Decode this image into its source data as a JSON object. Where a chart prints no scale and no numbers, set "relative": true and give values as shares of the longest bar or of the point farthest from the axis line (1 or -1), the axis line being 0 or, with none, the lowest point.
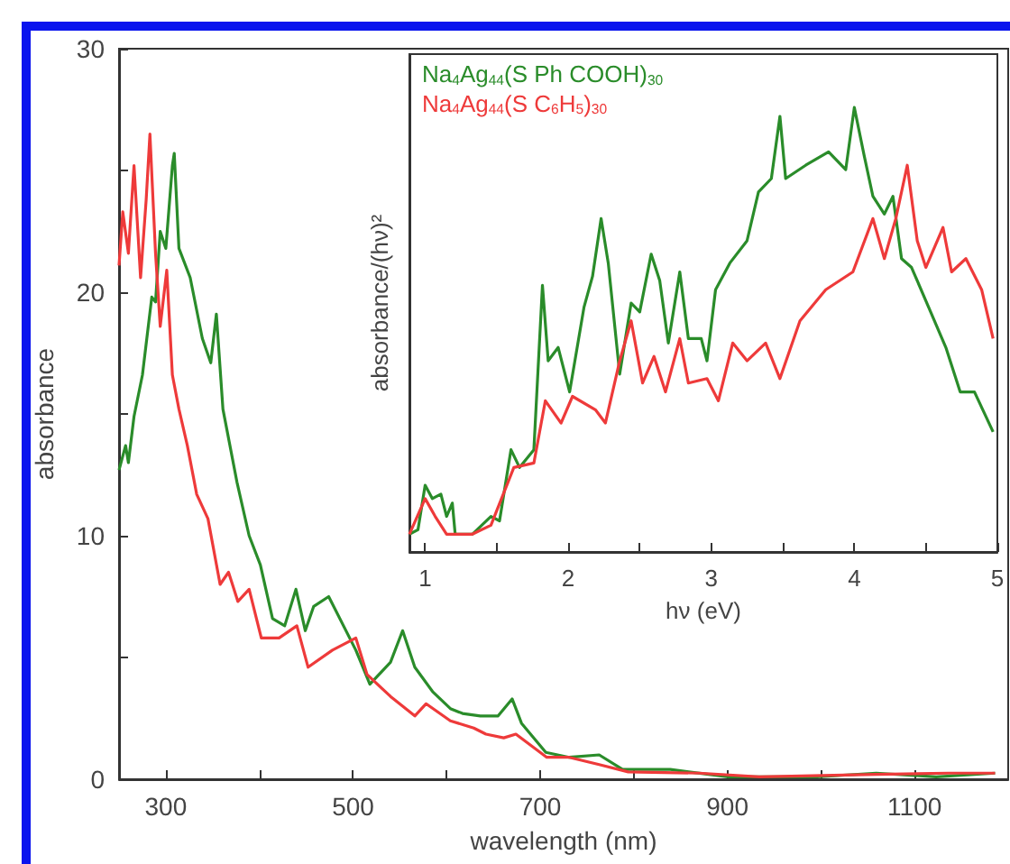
{
  "chart_data": [
    {
      "type": "line",
      "xlabel": "wavelength (nm)",
      "ylabel": "absorbance",
      "xlim": [
        250,
        1200
      ],
      "ylim": [
        0,
        30
      ],
      "xticks": [
        300,
        {
          "value": 400,
          "label": null
        },
        500,
        {
          "value": 600,
          "label": null
        },
        700,
        {
          "value": 800,
          "label": null
        },
        900,
        {
          "value": 1000,
          "label": null
        },
        1100
      ],
      "yticks": [
        0,
        {
          "value": 5,
          "label": null
        },
        10,
        {
          "value": 15,
          "label": null
        },
        20,
        {
          "value": 25,
          "label": null
        },
        30
      ],
      "series": [
        {
          "color": "#2a8c2a",
          "x": [
            250,
            257,
            260,
            266,
            275,
            285,
            289,
            294,
            300,
            307,
            309,
            314,
            326,
            339,
            348,
            354,
            361,
            376,
            389,
            401,
            414,
            427,
            439,
            449,
            458,
            474,
            503,
            518,
            540,
            553,
            566,
            585,
            604,
            617,
            636,
            655,
            670,
            680,
            706,
            731,
            763,
            788,
            839,
            901,
            996,
            1059,
            1123,
            1186
          ],
          "values": [
            12.7,
            13.7,
            13.0,
            14.9,
            16.6,
            19.8,
            19.6,
            22.5,
            21.8,
            25.2,
            25.7,
            21.8,
            20.6,
            18.1,
            17.1,
            19.1,
            15.2,
            12.2,
            10.0,
            8.8,
            6.6,
            6.3,
            7.8,
            6.1,
            7.1,
            7.5,
            5.3,
            3.9,
            4.8,
            6.1,
            4.6,
            3.6,
            2.9,
            2.7,
            2.6,
            2.6,
            3.3,
            2.3,
            1.1,
            0.9,
            1.0,
            0.4,
            0.4,
            0.1,
            0.1,
            0.25,
            0.1,
            0.25
          ]
        },
        {
          "color": "#ee3a3a",
          "x": [
            250,
            254,
            260,
            266,
            273,
            279,
            283,
            289,
            294,
            301,
            307,
            314,
            323,
            333,
            345,
            358,
            367,
            377,
            389,
            402,
            421,
            440,
            452,
            478,
            503,
            515,
            540,
            566,
            578,
            604,
            629,
            642,
            661,
            674,
            707,
            731,
            763,
            794,
            870,
            934,
            1059,
            1136,
            1186
          ],
          "values": [
            21.1,
            23.3,
            21.6,
            25.2,
            20.6,
            23.8,
            26.5,
            21.6,
            18.6,
            20.9,
            16.6,
            15.2,
            13.7,
            11.7,
            10.7,
            8.0,
            8.5,
            7.3,
            7.8,
            5.8,
            5.8,
            6.3,
            4.6,
            5.3,
            5.8,
            4.3,
            3.4,
            2.6,
            3.1,
            2.4,
            2.1,
            1.85,
            1.7,
            1.85,
            0.9,
            0.9,
            0.6,
            0.3,
            0.25,
            0.1,
            0.2,
            0.25,
            0.25
          ]
        }
      ]
    },
    {
      "type": "line",
      "relative": true,
      "xlabel": "hν (eV)",
      "ylabel": "absorbance/(hν)²",
      "legend": "top left",
      "xlim": [
        0.89,
        5
      ],
      "xticks": [
        1,
        {
          "value": 1.5,
          "label": null
        },
        2,
        {
          "value": 2.5,
          "label": null
        },
        3,
        {
          "value": 3.5,
          "label": null
        },
        4,
        {
          "value": 4.5,
          "label": null
        },
        5
      ],
      "series": [
        {
          "name": "Na$_{4}$Ag$_{44}$(S Ph COOH)$_{30}$",
          "color": "#2a8c2a",
          "x": [
            0.89,
            0.95,
            1.0,
            1.05,
            1.11,
            1.15,
            1.19,
            1.21,
            1.33,
            1.46,
            1.52,
            1.6,
            1.66,
            1.76,
            1.82,
            1.86,
            1.93,
            2.01,
            2.11,
            2.17,
            2.23,
            2.28,
            2.36,
            2.44,
            2.5,
            2.58,
            2.64,
            2.7,
            2.78,
            2.84,
            2.93,
            2.97,
            3.03,
            3.13,
            3.25,
            3.33,
            3.42,
            3.48,
            3.52,
            3.66,
            3.82,
            3.94,
            4.0,
            4.07,
            4.13,
            4.21,
            4.27,
            4.33,
            4.4,
            4.52,
            4.64,
            4.74,
            4.84,
            4.97
          ],
          "values": [
            0.04,
            0.05,
            0.15,
            0.12,
            0.13,
            0.08,
            0.11,
            0.04,
            0.04,
            0.08,
            0.07,
            0.23,
            0.19,
            0.23,
            0.6,
            0.43,
            0.46,
            0.36,
            0.55,
            0.62,
            0.75,
            0.65,
            0.4,
            0.56,
            0.54,
            0.67,
            0.61,
            0.47,
            0.63,
            0.48,
            0.48,
            0.43,
            0.59,
            0.65,
            0.7,
            0.81,
            0.84,
            0.98,
            0.84,
            0.87,
            0.9,
            0.86,
            1.0,
            0.89,
            0.8,
            0.76,
            0.8,
            0.66,
            0.64,
            0.55,
            0.46,
            0.36,
            0.36,
            0.27
          ]
        },
        {
          "name": "Na$_{4}$Ag$_{44}$(S C$_{6}$H$_{5}$)$_{30}$",
          "color": "#ee3a3a",
          "x": [
            0.89,
            1.0,
            1.07,
            1.15,
            1.33,
            1.46,
            1.62,
            1.76,
            1.84,
            1.95,
            2.03,
            2.19,
            2.26,
            2.36,
            2.44,
            2.52,
            2.6,
            2.68,
            2.78,
            2.84,
            2.97,
            3.05,
            3.15,
            3.25,
            3.38,
            3.48,
            3.62,
            3.8,
            3.99,
            4.13,
            4.21,
            4.29,
            4.37,
            4.44,
            4.5,
            4.62,
            4.68,
            4.78,
            4.89,
            4.97
          ],
          "values": [
            0.04,
            0.12,
            0.08,
            0.04,
            0.04,
            0.06,
            0.19,
            0.2,
            0.34,
            0.29,
            0.35,
            0.32,
            0.29,
            0.43,
            0.52,
            0.38,
            0.44,
            0.36,
            0.48,
            0.38,
            0.39,
            0.34,
            0.47,
            0.43,
            0.47,
            0.39,
            0.52,
            0.59,
            0.63,
            0.75,
            0.66,
            0.75,
            0.87,
            0.7,
            0.64,
            0.73,
            0.63,
            0.66,
            0.59,
            0.48
          ]
        }
      ]
    }
  ]
}
